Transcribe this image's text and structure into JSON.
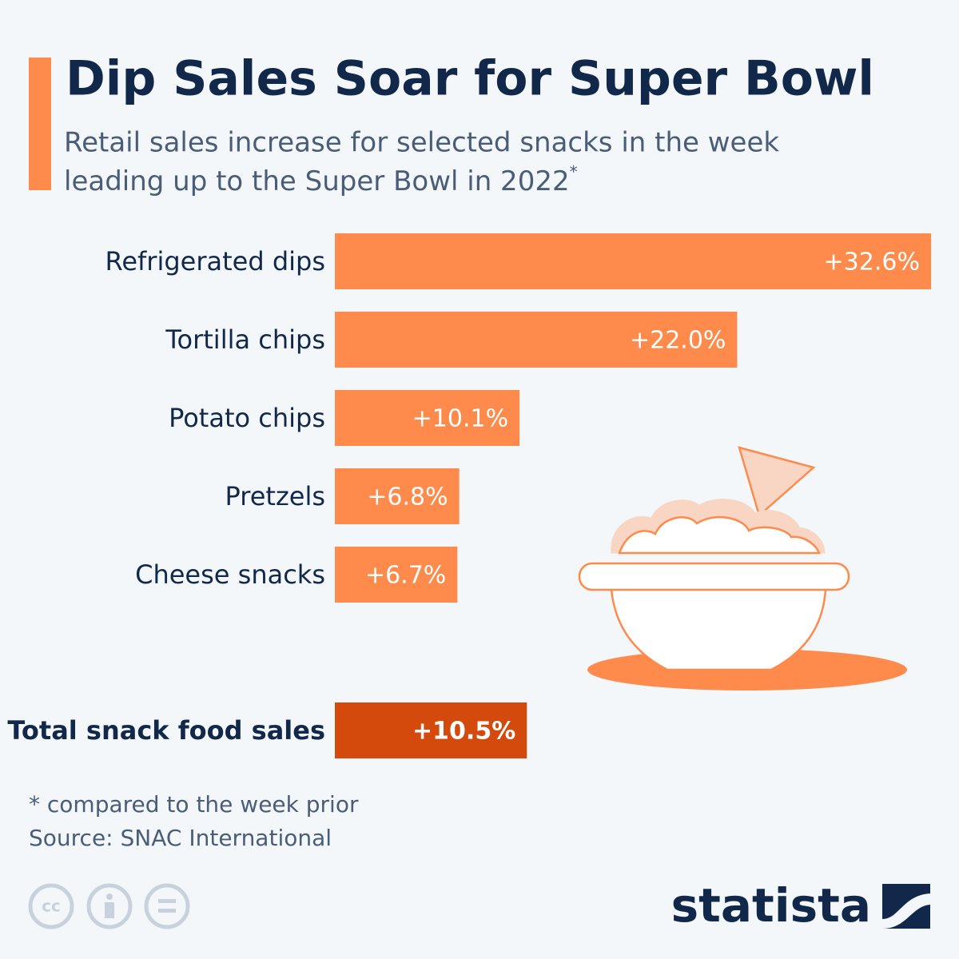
{
  "chart_data": {
    "type": "bar",
    "title": "Dip Sales Soar for Super Bowl",
    "subtitle": [
      "Retail sales increase for selected snacks in the week",
      "leading up to the Super Bowl in 2022"
    ],
    "subtitle_mark": "*",
    "categories": [
      "Refrigerated dips",
      "Tortilla chips",
      "Potato chips",
      "Pretzels",
      "Cheese snacks"
    ],
    "values": [
      32.6,
      22.0,
      10.1,
      6.8,
      6.7
    ],
    "value_labels": [
      "+32.6%",
      "+22.0%",
      "+10.1%",
      "+6.8%",
      "+6.7%"
    ],
    "color": "#fe8b4b",
    "total": {
      "category": "Total snack food sales",
      "value": 10.5,
      "value_label": "+10.5%",
      "color": "#d4490c"
    },
    "note": "* compared to the week prior",
    "source": "Source: SNAC International",
    "brand": "statista"
  }
}
